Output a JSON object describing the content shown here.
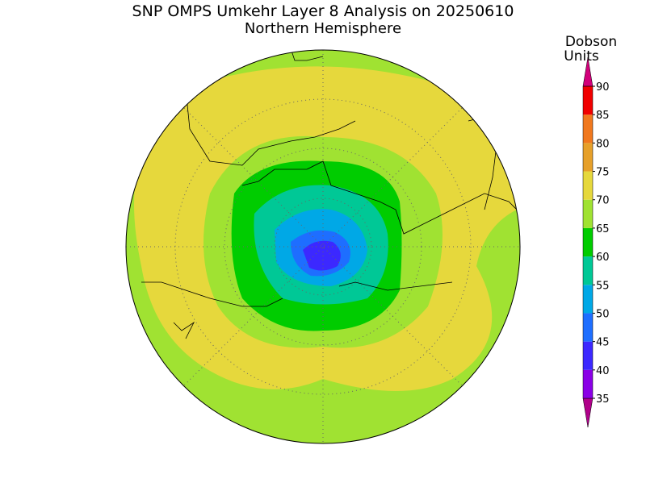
{
  "title": "SNP OMPS Umkehr Layer 8 Analysis on 20250610",
  "subtitle": "Northern Hemisphere",
  "colorbar": {
    "label": [
      "Dobson",
      "Units"
    ],
    "ticks": [
      35,
      40,
      45,
      50,
      55,
      60,
      65,
      70,
      75,
      80,
      85,
      90
    ],
    "colors": [
      "#b0008a",
      "#8a00e6",
      "#3c28ff",
      "#1e6eff",
      "#00a8e6",
      "#00c896",
      "#00cc00",
      "#a0e232",
      "#e6d83c",
      "#e6a02a",
      "#f0781e",
      "#f00000",
      "#d2007a"
    ]
  }
}
